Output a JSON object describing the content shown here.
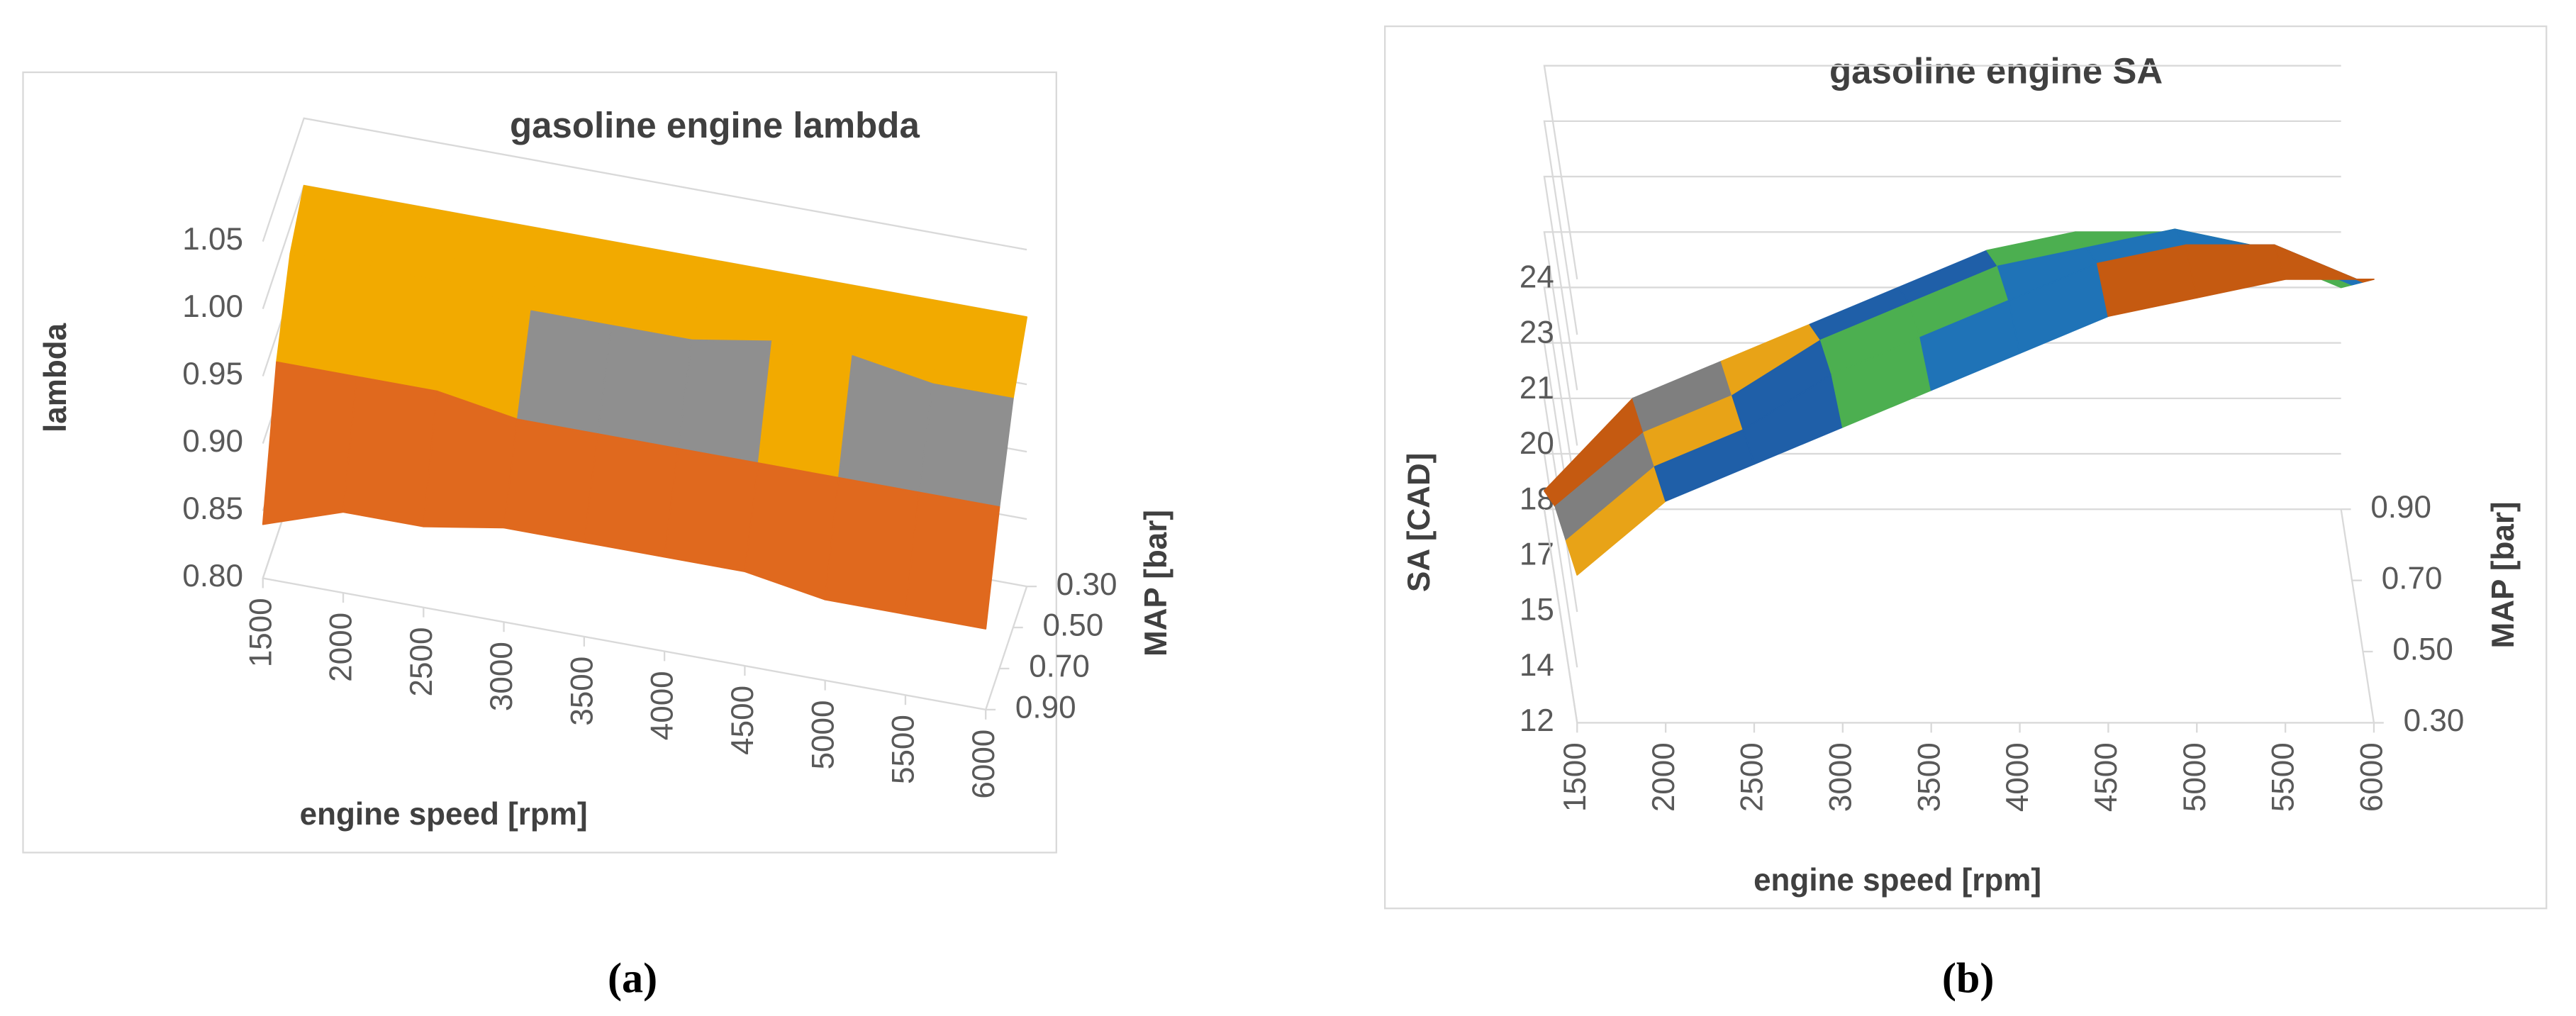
{
  "chart_data": [
    {
      "type": "surface",
      "title": "gasoline engine lambda",
      "x_label": "engine speed [rpm]",
      "y_label": "MAP [bar]",
      "z_label": "lambda",
      "x": [
        1500,
        2000,
        2500,
        3000,
        3500,
        4000,
        4500,
        5000,
        5500,
        6000
      ],
      "y": [
        {
          "value": 0.3,
          "label": "0.30"
        },
        {
          "value": 0.5,
          "label": "0.50"
        },
        {
          "value": 0.7,
          "label": "0.70"
        },
        {
          "value": 0.9,
          "label": "0.90"
        }
      ],
      "values": [
        [
          1.0,
          1.0,
          1.0,
          1.0,
          1.0,
          1.0,
          1.0,
          1.0,
          1.0,
          1.0
        ],
        [
          0.98,
          0.98,
          0.98,
          0.97,
          0.97,
          0.97,
          0.98,
          0.98,
          0.97,
          0.97
        ],
        [
          0.93,
          0.93,
          0.93,
          0.92,
          0.92,
          0.92,
          0.92,
          0.92,
          0.92,
          0.92
        ],
        [
          0.84,
          0.86,
          0.86,
          0.87,
          0.87,
          0.87,
          0.87,
          0.86,
          0.86,
          0.86
        ]
      ],
      "zlim": [
        0.8,
        1.05
      ],
      "zticks": [
        {
          "value": 0.8,
          "label": "0.80"
        },
        {
          "value": 0.85,
          "label": "0.85"
        },
        {
          "value": 0.9,
          "label": "0.90"
        },
        {
          "value": 0.95,
          "label": "0.95"
        },
        {
          "value": 1.0,
          "label": "1.00"
        },
        {
          "value": 1.05,
          "label": "1.05"
        }
      ],
      "band_colors": [
        "#2e86d1",
        "#e0691e",
        "#8f8f8f",
        "#f2aa00",
        "#1f6fc4",
        "#1f6fc4"
      ]
    },
    {
      "type": "surface",
      "title": "gasoline engine SA",
      "x_label": "engine speed [rpm]",
      "y_label": "MAP [bar]",
      "z_label": "SA [CAD]",
      "x": [
        1500,
        2000,
        2500,
        3000,
        3500,
        4000,
        4500,
        5000,
        5500,
        6000
      ],
      "y": [
        {
          "value": 0.3,
          "label": "0.30"
        },
        {
          "value": 0.5,
          "label": "0.50"
        },
        {
          "value": 0.7,
          "label": "0.70"
        },
        {
          "value": 0.9,
          "label": "0.90"
        }
      ],
      "values": [
        [
          16,
          18,
          19,
          20,
          21,
          22,
          23,
          23.5,
          24,
          24
        ],
        [
          15,
          17,
          18,
          19.5,
          20.5,
          21.5,
          22.5,
          23,
          23,
          22
        ],
        [
          14,
          16,
          17,
          18.5,
          19.5,
          20.5,
          21,
          21.5,
          21,
          20
        ],
        [
          12.5,
          15,
          16,
          17,
          18,
          19,
          19.5,
          19.5,
          19,
          18
        ]
      ],
      "zlim": [
        12,
        24
      ],
      "zticks": [
        12,
        {
          "value": 13.5,
          "label": "14"
        },
        15,
        {
          "value": 16.5,
          "label": "17"
        },
        18,
        {
          "value": 19.5,
          "label": "20"
        },
        21,
        {
          "value": 22.5,
          "label": "23"
        },
        24
      ],
      "band_colors": [
        "#2e86d1",
        "#c55a11",
        "#7f7f7f",
        "#e8a317",
        "#1f5fa8",
        "#4caf50",
        "#1f73b7",
        "#c55a11",
        "#5a5a5a"
      ]
    }
  ],
  "captions": [
    "(a)",
    "(b)"
  ]
}
